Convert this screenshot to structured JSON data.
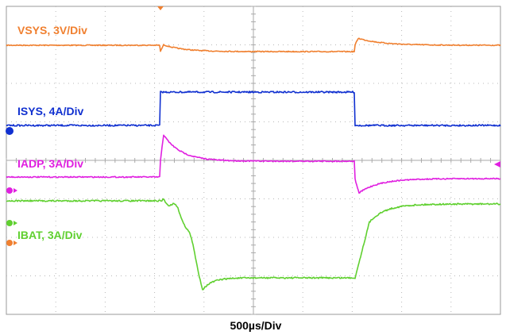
{
  "screen": {
    "traces": [
      {
        "label": "VSYS, 3V/Div"
      },
      {
        "label": "ISYS, 4A/Div"
      },
      {
        "label": "IADP, 3A/Div"
      },
      {
        "label": "IBAT, 3A/Div"
      }
    ],
    "timebase": "500µs/Div"
  }
}
